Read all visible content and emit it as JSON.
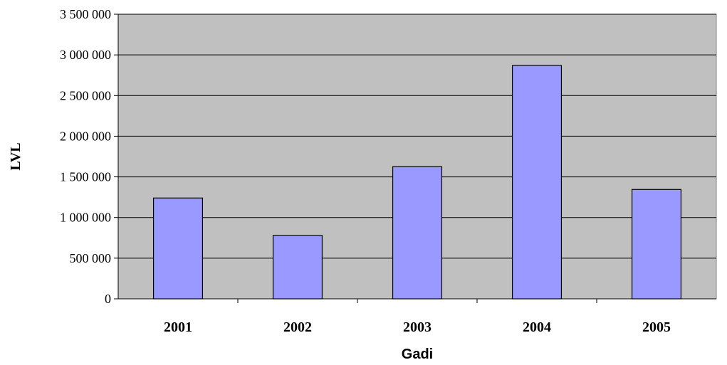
{
  "chart_data": {
    "type": "bar",
    "categories": [
      "2001",
      "2002",
      "2003",
      "2004",
      "2005"
    ],
    "values": [
      1240000,
      780000,
      1625000,
      2870000,
      1345000
    ],
    "xlabel": "Gadi",
    "ylabel": "LVL",
    "ylim": [
      0,
      3500000
    ],
    "yticks": [
      0,
      500000,
      1000000,
      1500000,
      2000000,
      2500000,
      3000000,
      3500000
    ],
    "ytick_labels": [
      "0",
      "500 000",
      "1 000 000",
      "1 500 000",
      "2 000 000",
      "2 500 000",
      "3 000 000",
      "3 500 000"
    ],
    "grid": true,
    "legend": "none",
    "colors": {
      "plot_background": "#c0c0c0",
      "bar_fill": "#9999ff",
      "bar_stroke": "#000000",
      "gridline": "#000000"
    }
  }
}
